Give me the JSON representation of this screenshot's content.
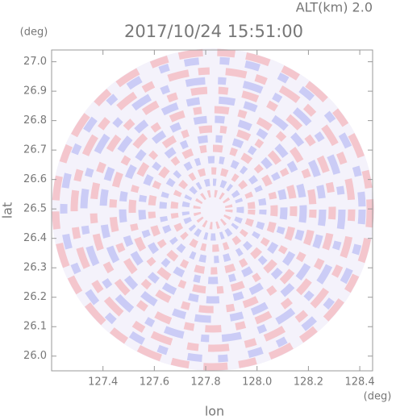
{
  "chart_data": {
    "type": "ppi",
    "title": "2017/10/24 15:51:00",
    "annotation": "ALT(km) 2.0",
    "x_label": "lon",
    "y_label": "lat",
    "x_unit": "(deg)",
    "y_unit": "(deg)",
    "xlim": [
      127.2,
      128.45
    ],
    "ylim": [
      25.95,
      27.04
    ],
    "xticks": [
      127.4,
      127.6,
      127.8,
      {
        "value": 128.0,
        "label": "128.0"
      },
      128.2,
      128.4
    ],
    "yticks": [
      {
        "value": 26.0,
        "label": "26.0"
      },
      26.1,
      26.2,
      26.3,
      26.4,
      26.5,
      26.6,
      26.7,
      26.8,
      26.9,
      {
        "value": 27.0,
        "label": "27.0"
      }
    ]
  }
}
